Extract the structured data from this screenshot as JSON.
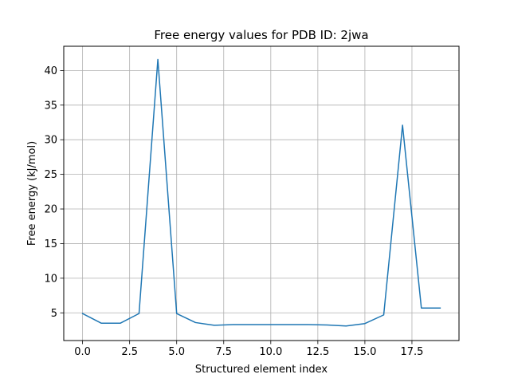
{
  "chart_data": {
    "type": "line",
    "title": "Free energy values for PDB ID: 2jwa",
    "xlabel": "Structured element index",
    "ylabel": "Free energy (kJ/mol)",
    "xlim": [
      -1.0,
      20.0
    ],
    "ylim": [
      1.0,
      43.5
    ],
    "grid": true,
    "xticks": [
      0.0,
      2.5,
      5.0,
      7.5,
      10.0,
      12.5,
      15.0,
      17.5
    ],
    "xtick_labels": [
      "0.0",
      "2.5",
      "5.0",
      "7.5",
      "10.0",
      "12.5",
      "15.0",
      "17.5"
    ],
    "yticks": [
      5,
      10,
      15,
      20,
      25,
      30,
      35,
      40
    ],
    "ytick_labels": [
      "5",
      "10",
      "15",
      "20",
      "25",
      "30",
      "35",
      "40"
    ],
    "series": [
      {
        "name": "free energy",
        "color": "#1f77b4",
        "x": [
          0,
          1,
          2,
          3,
          4,
          5,
          6,
          7,
          8,
          9,
          10,
          11,
          12,
          13,
          14,
          15,
          16,
          17,
          18,
          19
        ],
        "values": [
          4.9,
          3.5,
          3.5,
          4.9,
          41.6,
          4.9,
          3.6,
          3.2,
          3.3,
          3.3,
          3.3,
          3.3,
          3.3,
          3.25,
          3.1,
          3.45,
          4.7,
          32.1,
          5.7,
          5.7
        ]
      }
    ]
  }
}
